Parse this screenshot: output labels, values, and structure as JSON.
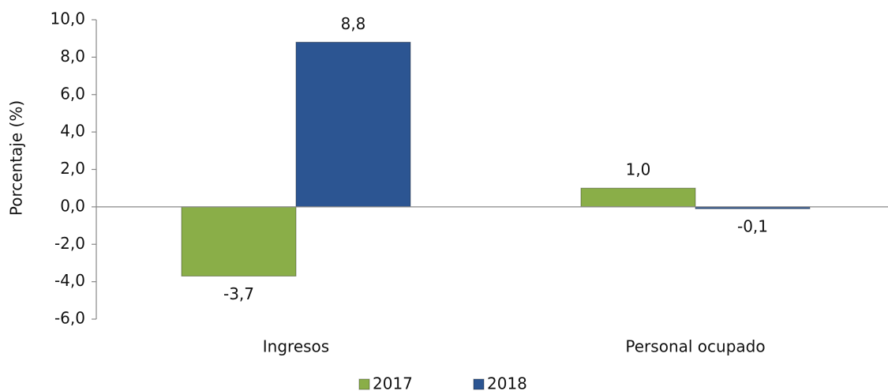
{
  "chart_data": {
    "type": "bar",
    "y_label": "Porcentaje (%)",
    "categories": [
      "Ingresos",
      "Personal ocupado"
    ],
    "series": [
      {
        "name": "2017",
        "color": "#8aae48",
        "values": [
          -3.7,
          1.0
        ],
        "value_labels": [
          "-3,7",
          "1,0"
        ]
      },
      {
        "name": "2018",
        "color": "#2c5592",
        "values": [
          8.8,
          -0.1
        ],
        "value_labels": [
          "8,8",
          "-0,1"
        ]
      }
    ],
    "ylim": [
      -6,
      10
    ],
    "yticks": [
      {
        "value": -6,
        "label": "-6,0"
      },
      {
        "value": -4,
        "label": "-4,0"
      },
      {
        "value": -2,
        "label": "-2,0"
      },
      {
        "value": 0,
        "label": "0,0"
      },
      {
        "value": 2,
        "label": "2,0"
      },
      {
        "value": 4,
        "label": "4,0"
      },
      {
        "value": 6,
        "label": "6,0"
      },
      {
        "value": 8,
        "label": "8,0"
      },
      {
        "value": 10,
        "label": "10,0"
      }
    ],
    "grid": false,
    "legend": "bottom"
  }
}
